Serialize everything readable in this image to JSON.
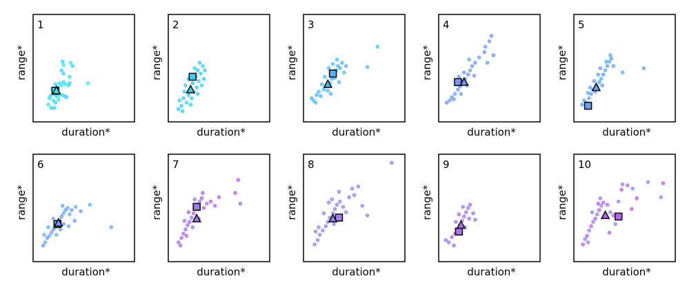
{
  "chart_data": [
    {
      "type": "scatter",
      "panel_label": "1",
      "xlabel": "duration*",
      "ylabel": "range*",
      "xlim": [
        0,
        10
      ],
      "ylim": [
        0,
        10
      ],
      "colors": [
        "#3de3f7",
        "#3ad6f6"
      ],
      "points": [
        [
          1.5,
          1.6
        ],
        [
          1.8,
          1.3
        ],
        [
          2,
          2
        ],
        [
          2.2,
          1.8
        ],
        [
          2.5,
          2.1
        ],
        [
          1.7,
          2.4
        ],
        [
          2,
          2.6
        ],
        [
          2.3,
          2.4
        ],
        [
          2.6,
          2.5
        ],
        [
          2.9,
          2.5
        ],
        [
          3.1,
          2.4
        ],
        [
          3.3,
          2.3
        ],
        [
          1.9,
          3
        ],
        [
          2.4,
          3.2
        ],
        [
          2.8,
          3.4
        ],
        [
          3,
          3.7
        ],
        [
          3.2,
          3.5
        ],
        [
          3.6,
          3.6
        ],
        [
          3.5,
          3.4
        ],
        [
          2.2,
          3.5
        ],
        [
          2.6,
          3.6
        ],
        [
          3,
          4.5
        ],
        [
          3.6,
          4.2
        ],
        [
          2.8,
          4.8
        ],
        [
          3,
          5.3
        ],
        [
          2.9,
          5.6
        ],
        [
          3.7,
          5.5
        ],
        [
          3.9,
          5.2
        ],
        [
          5.4,
          3.6
        ],
        [
          2.4,
          2.8
        ],
        [
          1.6,
          2.2
        ],
        [
          2.1,
          1.3
        ]
      ],
      "triangle": [
        2.3,
        2.9
      ],
      "square": [
        2.2,
        2.9
      ]
    },
    {
      "type": "scatter",
      "panel_label": "2",
      "xlabel": "duration*",
      "ylabel": "range*",
      "xlim": [
        0,
        10
      ],
      "ylim": [
        0,
        10
      ],
      "colors": [
        "#3ad0f5",
        "#45c4f5"
      ],
      "points": [
        [
          1,
          1.2
        ],
        [
          1.3,
          1.5
        ],
        [
          1.1,
          2
        ],
        [
          1.5,
          2.2
        ],
        [
          1.8,
          1.8
        ],
        [
          2,
          2.5
        ],
        [
          2.3,
          2.2
        ],
        [
          1.6,
          2.8
        ],
        [
          2.1,
          3
        ],
        [
          2.5,
          2.8
        ],
        [
          2.8,
          3.2
        ],
        [
          2.4,
          3.6
        ],
        [
          3,
          3.8
        ],
        [
          2.7,
          4.2
        ],
        [
          3.2,
          4.5
        ],
        [
          2.9,
          4.8
        ],
        [
          3.4,
          5.2
        ],
        [
          3.1,
          5.5
        ],
        [
          2.6,
          5
        ],
        [
          3.5,
          4
        ],
        [
          2,
          4
        ],
        [
          1.7,
          3.4
        ],
        [
          2.2,
          1.6
        ],
        [
          1.4,
          1
        ],
        [
          3.3,
          3.4
        ],
        [
          2.9,
          2.6
        ],
        [
          3.6,
          4.8
        ]
      ],
      "triangle": [
        2.2,
        3.0
      ],
      "square": [
        2.4,
        4.2
      ]
    },
    {
      "type": "scatter",
      "panel_label": "3",
      "xlabel": "duration*",
      "ylabel": "range*",
      "xlim": [
        0,
        10
      ],
      "ylim": [
        0,
        10
      ],
      "colors": [
        "#55b4f5",
        "#4cc2f5"
      ],
      "points": [
        [
          0.8,
          2.2
        ],
        [
          1,
          2
        ],
        [
          1.3,
          2.5
        ],
        [
          1.5,
          2.8
        ],
        [
          1.7,
          2.4
        ],
        [
          2,
          3
        ],
        [
          2.2,
          3.3
        ],
        [
          2.4,
          2.9
        ],
        [
          1.8,
          3.5
        ],
        [
          2.6,
          3.6
        ],
        [
          2.8,
          4
        ],
        [
          3,
          4.4
        ],
        [
          3.2,
          4.8
        ],
        [
          3.4,
          5.2
        ],
        [
          3.6,
          5
        ],
        [
          3.8,
          5.5
        ],
        [
          2.5,
          5
        ],
        [
          2.9,
          5.4
        ],
        [
          3.1,
          4.1
        ],
        [
          4,
          4.6
        ],
        [
          4.2,
          5.2
        ],
        [
          2.1,
          4.2
        ],
        [
          3.5,
          3.7
        ],
        [
          1.2,
          1.8
        ],
        [
          6.3,
          5.1
        ],
        [
          7.3,
          7.0
        ],
        [
          2.7,
          2.6
        ],
        [
          3.3,
          5.8
        ]
      ],
      "triangle": [
        2.4,
        3.5
      ],
      "square": [
        2.9,
        4.5
      ]
    },
    {
      "type": "scatter",
      "panel_label": "4",
      "xlabel": "duration*",
      "ylabel": "range*",
      "xlim": [
        0,
        10
      ],
      "ylim": [
        0,
        10
      ],
      "colors": [
        "#7a95f0",
        "#6aa6f2"
      ],
      "points": [
        [
          0.8,
          1.8
        ],
        [
          1.1,
          2
        ],
        [
          1.3,
          2.3
        ],
        [
          1.6,
          2.6
        ],
        [
          1.9,
          3
        ],
        [
          2.1,
          3.3
        ],
        [
          2.3,
          3.7
        ],
        [
          2.6,
          4
        ],
        [
          2.9,
          4.4
        ],
        [
          3.1,
          4.8
        ],
        [
          3.3,
          5.2
        ],
        [
          3,
          5.8
        ],
        [
          2.5,
          4.6
        ],
        [
          2,
          4.2
        ],
        [
          1.7,
          3.6
        ],
        [
          2.8,
          3.4
        ],
        [
          3.6,
          5.5
        ],
        [
          4,
          6
        ],
        [
          4.5,
          6.5
        ],
        [
          5,
          7.5
        ],
        [
          5.4,
          6.2
        ],
        [
          4.6,
          7
        ],
        [
          5.2,
          8
        ],
        [
          4.8,
          5.5
        ],
        [
          1.5,
          2.1
        ],
        [
          2.2,
          2.6
        ],
        [
          3.5,
          4.3
        ]
      ],
      "triangle": [
        2.5,
        3.7
      ],
      "square": [
        1.9,
        3.7
      ]
    },
    {
      "type": "scatter",
      "panel_label": "5",
      "xlabel": "duration*",
      "ylabel": "range*",
      "xlim": [
        0,
        10
      ],
      "ylim": [
        0,
        10
      ],
      "colors": [
        "#6a9ff2",
        "#5fb0f3"
      ],
      "points": [
        [
          0.8,
          1.6
        ],
        [
          1,
          2
        ],
        [
          1.2,
          1.8
        ],
        [
          1.5,
          2.2
        ],
        [
          1.7,
          2.6
        ],
        [
          1.9,
          3
        ],
        [
          2.1,
          2.8
        ],
        [
          2.3,
          3.3
        ],
        [
          2.5,
          3.7
        ],
        [
          2.7,
          4
        ],
        [
          2.9,
          4.4
        ],
        [
          3.1,
          4.8
        ],
        [
          3.3,
          5.2
        ],
        [
          3.5,
          5.6
        ],
        [
          3.7,
          5.9
        ],
        [
          3.2,
          5.6
        ],
        [
          2.6,
          5
        ],
        [
          2.4,
          4.4
        ],
        [
          2,
          3.8
        ],
        [
          1.6,
          3.2
        ],
        [
          3.9,
          5.2
        ],
        [
          4.8,
          4.6
        ],
        [
          6.9,
          5.0
        ],
        [
          1.4,
          2.7
        ],
        [
          2.8,
          3.4
        ],
        [
          3.6,
          6.2
        ]
      ],
      "triangle": [
        2.2,
        3.2
      ],
      "square": [
        1.4,
        1.5
      ]
    },
    {
      "type": "scatter",
      "panel_label": "6",
      "xlabel": "duration*",
      "ylabel": "range*",
      "xlim": [
        0,
        10
      ],
      "ylim": [
        0,
        10
      ],
      "colors": [
        "#70a0f0",
        "#6ab0f2"
      ],
      "points": [
        [
          1,
          1.5
        ],
        [
          1.2,
          1.8
        ],
        [
          1.4,
          2.2
        ],
        [
          1.6,
          2.4
        ],
        [
          1.8,
          2.7
        ],
        [
          1.1,
          2.5
        ],
        [
          2,
          3
        ],
        [
          2.2,
          3.2
        ],
        [
          2.4,
          3.6
        ],
        [
          2.6,
          3.9
        ],
        [
          2.8,
          4.2
        ],
        [
          3,
          4.5
        ],
        [
          3.2,
          4.8
        ],
        [
          3.4,
          5
        ],
        [
          2.9,
          5.2
        ],
        [
          3.6,
          4.4
        ],
        [
          3.8,
          4.8
        ],
        [
          4.2,
          5.1
        ],
        [
          4.7,
          4.7
        ],
        [
          5.6,
          5.3
        ],
        [
          4.1,
          3.8
        ],
        [
          3.5,
          3.3
        ],
        [
          2.7,
          3
        ],
        [
          2.3,
          2.5
        ],
        [
          7.7,
          3.2
        ],
        [
          1.5,
          3.2
        ],
        [
          3,
          3.5
        ],
        [
          2,
          4
        ]
      ],
      "triangle": [
        2.5,
        3.6
      ],
      "square": [
        2.4,
        3.5
      ]
    },
    {
      "type": "scatter",
      "panel_label": "7",
      "xlabel": "duration*",
      "ylabel": "range*",
      "xlim": [
        0,
        10
      ],
      "ylim": [
        0,
        10
      ],
      "colors": [
        "#9a7af0",
        "#b066f0"
      ],
      "points": [
        [
          1,
          1.8
        ],
        [
          1.3,
          2.2
        ],
        [
          1.5,
          2.6
        ],
        [
          1.7,
          3
        ],
        [
          1.9,
          3.4
        ],
        [
          2.1,
          3.7
        ],
        [
          2.3,
          4.1
        ],
        [
          2.5,
          4.5
        ],
        [
          2.7,
          4.9
        ],
        [
          2.9,
          5.3
        ],
        [
          3.1,
          5.6
        ],
        [
          3.3,
          5.9
        ],
        [
          2.6,
          5.8
        ],
        [
          2,
          4.6
        ],
        [
          1.6,
          3.8
        ],
        [
          3.5,
          5
        ],
        [
          3.8,
          5.4
        ],
        [
          4.2,
          5.6
        ],
        [
          4.6,
          5.2
        ],
        [
          5,
          6
        ],
        [
          2.4,
          3.2
        ],
        [
          1.8,
          2.4
        ],
        [
          3,
          4
        ],
        [
          6.9,
          7.6
        ],
        [
          7.1,
          5.4
        ],
        [
          6.6,
          6.4
        ],
        [
          1.2,
          1.5
        ],
        [
          3.4,
          6.4
        ]
      ],
      "triangle": [
        2.8,
        4.0
      ],
      "square": [
        2.8,
        5.1
      ]
    },
    {
      "type": "scatter",
      "panel_label": "8",
      "xlabel": "duration*",
      "ylabel": "range*",
      "xlim": [
        0,
        10
      ],
      "ylim": [
        0,
        10
      ],
      "colors": [
        "#a080f0",
        "#8a8cf0"
      ],
      "points": [
        [
          1.1,
          1.6
        ],
        [
          1.4,
          2
        ],
        [
          1.6,
          2.5
        ],
        [
          1.9,
          2.9
        ],
        [
          2.2,
          3.3
        ],
        [
          2.4,
          3.7
        ],
        [
          2.6,
          4.1
        ],
        [
          2.9,
          4.5
        ],
        [
          3.1,
          4.9
        ],
        [
          3.3,
          5.3
        ],
        [
          2.8,
          5.8
        ],
        [
          2.5,
          5.5
        ],
        [
          3.6,
          5.6
        ],
        [
          3.9,
          5.1
        ],
        [
          4.2,
          4.6
        ],
        [
          4.5,
          6
        ],
        [
          5,
          6.2
        ],
        [
          5.4,
          7
        ],
        [
          4.8,
          6.8
        ],
        [
          5.8,
          5.2
        ],
        [
          6.3,
          4.3
        ],
        [
          3.5,
          6.5
        ],
        [
          2,
          4.5
        ],
        [
          1.5,
          3.2
        ],
        [
          8.7,
          9.2
        ],
        [
          3,
          3.5
        ],
        [
          1.2,
          2.8
        ]
      ],
      "triangle": [
        2.9,
        4.0
      ],
      "square": [
        3.5,
        4.1
      ]
    },
    {
      "type": "scatter",
      "panel_label": "9",
      "xlabel": "duration*",
      "ylabel": "range*",
      "xlim": [
        0,
        10
      ],
      "ylim": [
        0,
        10
      ],
      "colors": [
        "#b070f0",
        "#9080f0"
      ],
      "points": [
        [
          0.7,
          2
        ],
        [
          1,
          1.8
        ],
        [
          1.3,
          2.3
        ],
        [
          1.6,
          2.6
        ],
        [
          1.8,
          3
        ],
        [
          2.1,
          3.4
        ],
        [
          2.3,
          3.8
        ],
        [
          2.5,
          4.2
        ],
        [
          2.7,
          4.6
        ],
        [
          2.9,
          5
        ],
        [
          3.1,
          5.3
        ],
        [
          2.4,
          5.1
        ],
        [
          2,
          4.4
        ],
        [
          1.7,
          3.7
        ],
        [
          3.4,
          4.5
        ],
        [
          3.6,
          3.9
        ],
        [
          1.5,
          1.5
        ],
        [
          2.6,
          3.2
        ],
        [
          3,
          4
        ]
      ],
      "triangle": [
        2.2,
        3.4
      ],
      "square": [
        2.0,
        2.8
      ]
    },
    {
      "type": "scatter",
      "panel_label": "10",
      "xlabel": "duration*",
      "ylabel": "range*",
      "xlim": [
        0,
        10
      ],
      "ylim": [
        0,
        10
      ],
      "colors": [
        "#c060f0",
        "#8c8cf2"
      ],
      "points": [
        [
          0.9,
          1.6
        ],
        [
          1.1,
          2.1
        ],
        [
          1.3,
          2.4
        ],
        [
          1.5,
          2.9
        ],
        [
          1.7,
          3.3
        ],
        [
          1.9,
          3.7
        ],
        [
          2.1,
          4
        ],
        [
          2.3,
          4.4
        ],
        [
          2.5,
          4.8
        ],
        [
          2.7,
          5.2
        ],
        [
          2.9,
          5.5
        ],
        [
          2.6,
          5.9
        ],
        [
          2.4,
          5.4
        ],
        [
          1.8,
          4.6
        ],
        [
          3.3,
          5.3
        ],
        [
          3.6,
          4.6
        ],
        [
          3.9,
          4.3
        ],
        [
          4.4,
          5.6
        ],
        [
          4.7,
          6.7
        ],
        [
          4.8,
          7.2
        ],
        [
          5.3,
          7.1
        ],
        [
          5.8,
          6.8
        ],
        [
          6.2,
          5.9
        ],
        [
          4.1,
          3.5
        ],
        [
          3.5,
          2.7
        ],
        [
          7.3,
          7.4
        ],
        [
          8.8,
          7.3
        ],
        [
          8.6,
          6.0
        ],
        [
          5.7,
          4.9
        ],
        [
          1.4,
          1.8
        ]
      ],
      "triangle": [
        3.1,
        4.3
      ],
      "square": [
        4.4,
        4.2
      ]
    }
  ]
}
